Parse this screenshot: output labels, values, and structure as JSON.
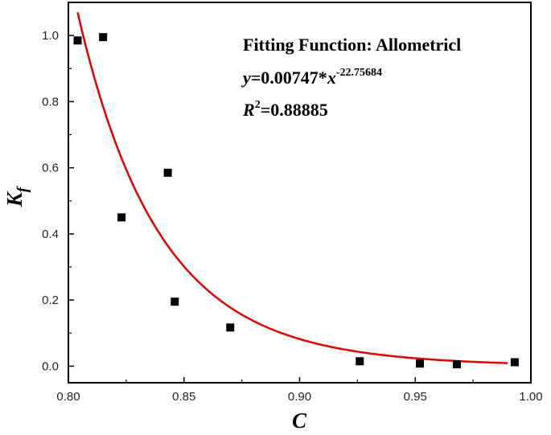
{
  "chart_data": {
    "type": "scatter",
    "title": "",
    "xlabel": "C",
    "ylabel_main": "K",
    "ylabel_sub": "f",
    "xlim": [
      0.8,
      1.0
    ],
    "ylim": [
      -0.05,
      1.1
    ],
    "xticks": [
      "0.80",
      "0.85",
      "0.90",
      "0.95",
      "1.00"
    ],
    "yticks": [
      "0.0",
      "0.2",
      "0.4",
      "0.6",
      "0.8",
      "1.0"
    ],
    "grid": false,
    "legend": "none",
    "points": {
      "x": [
        0.804,
        0.815,
        0.823,
        0.843,
        0.846,
        0.87,
        0.926,
        0.952,
        0.968,
        0.993
      ],
      "y": [
        0.985,
        0.995,
        0.45,
        0.585,
        0.195,
        0.117,
        0.015,
        0.008,
        0.006,
        0.012
      ]
    },
    "fit": {
      "a": 0.00747,
      "b": -22.75684,
      "x_range": [
        0.804,
        0.99
      ],
      "color": "#e00000"
    },
    "marker_color": "#000000",
    "annotation": {
      "line1": "Fitting Function: Allometricl",
      "y_var": "y",
      "eq_mid": "=0.00747*",
      "x_var": "x",
      "exponent": "-22.75684",
      "r_var": "R",
      "r_sup": "2",
      "r_value": "=0.88885"
    }
  }
}
